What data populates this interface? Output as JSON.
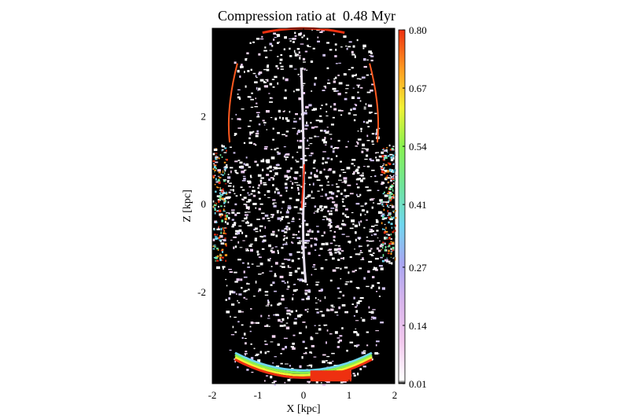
{
  "chart_data": {
    "type": "heatmap",
    "title": "Compression ratio at  0.48 Myr",
    "xlabel": "X [kpc]",
    "ylabel": "Z [kpc]",
    "xlim": [
      -2,
      2
    ],
    "ylim": [
      -4.1,
      4.0
    ],
    "x_ticks": [
      -2,
      -1,
      0,
      1,
      2
    ],
    "x_tick_labels": [
      "-2",
      "-1",
      "0",
      "1",
      "2"
    ],
    "y_ticks": [
      -2,
      0,
      2
    ],
    "y_tick_labels": [
      "-2",
      "0",
      "2"
    ],
    "colorbar": {
      "min": 0.01,
      "max": 0.8,
      "ticks": [
        0.01,
        0.14,
        0.27,
        0.41,
        0.54,
        0.67,
        0.8
      ],
      "tick_labels": [
        "0.01",
        "0.14",
        "0.27",
        "0.41",
        "0.54",
        "0.67",
        "0.80"
      ],
      "colors": [
        "#000000",
        "#ffffff",
        "#f2c8ee",
        "#d8b4ec",
        "#a9a6f2",
        "#6fd7ef",
        "#6fe59a",
        "#88f250",
        "#f2f234",
        "#ff9a20",
        "#ee3010"
      ]
    },
    "background_color": "#000000",
    "description_values": {
      "dominant": "mixed white / pale-violet filaments on black",
      "high_edge_values": 0.8
    }
  }
}
